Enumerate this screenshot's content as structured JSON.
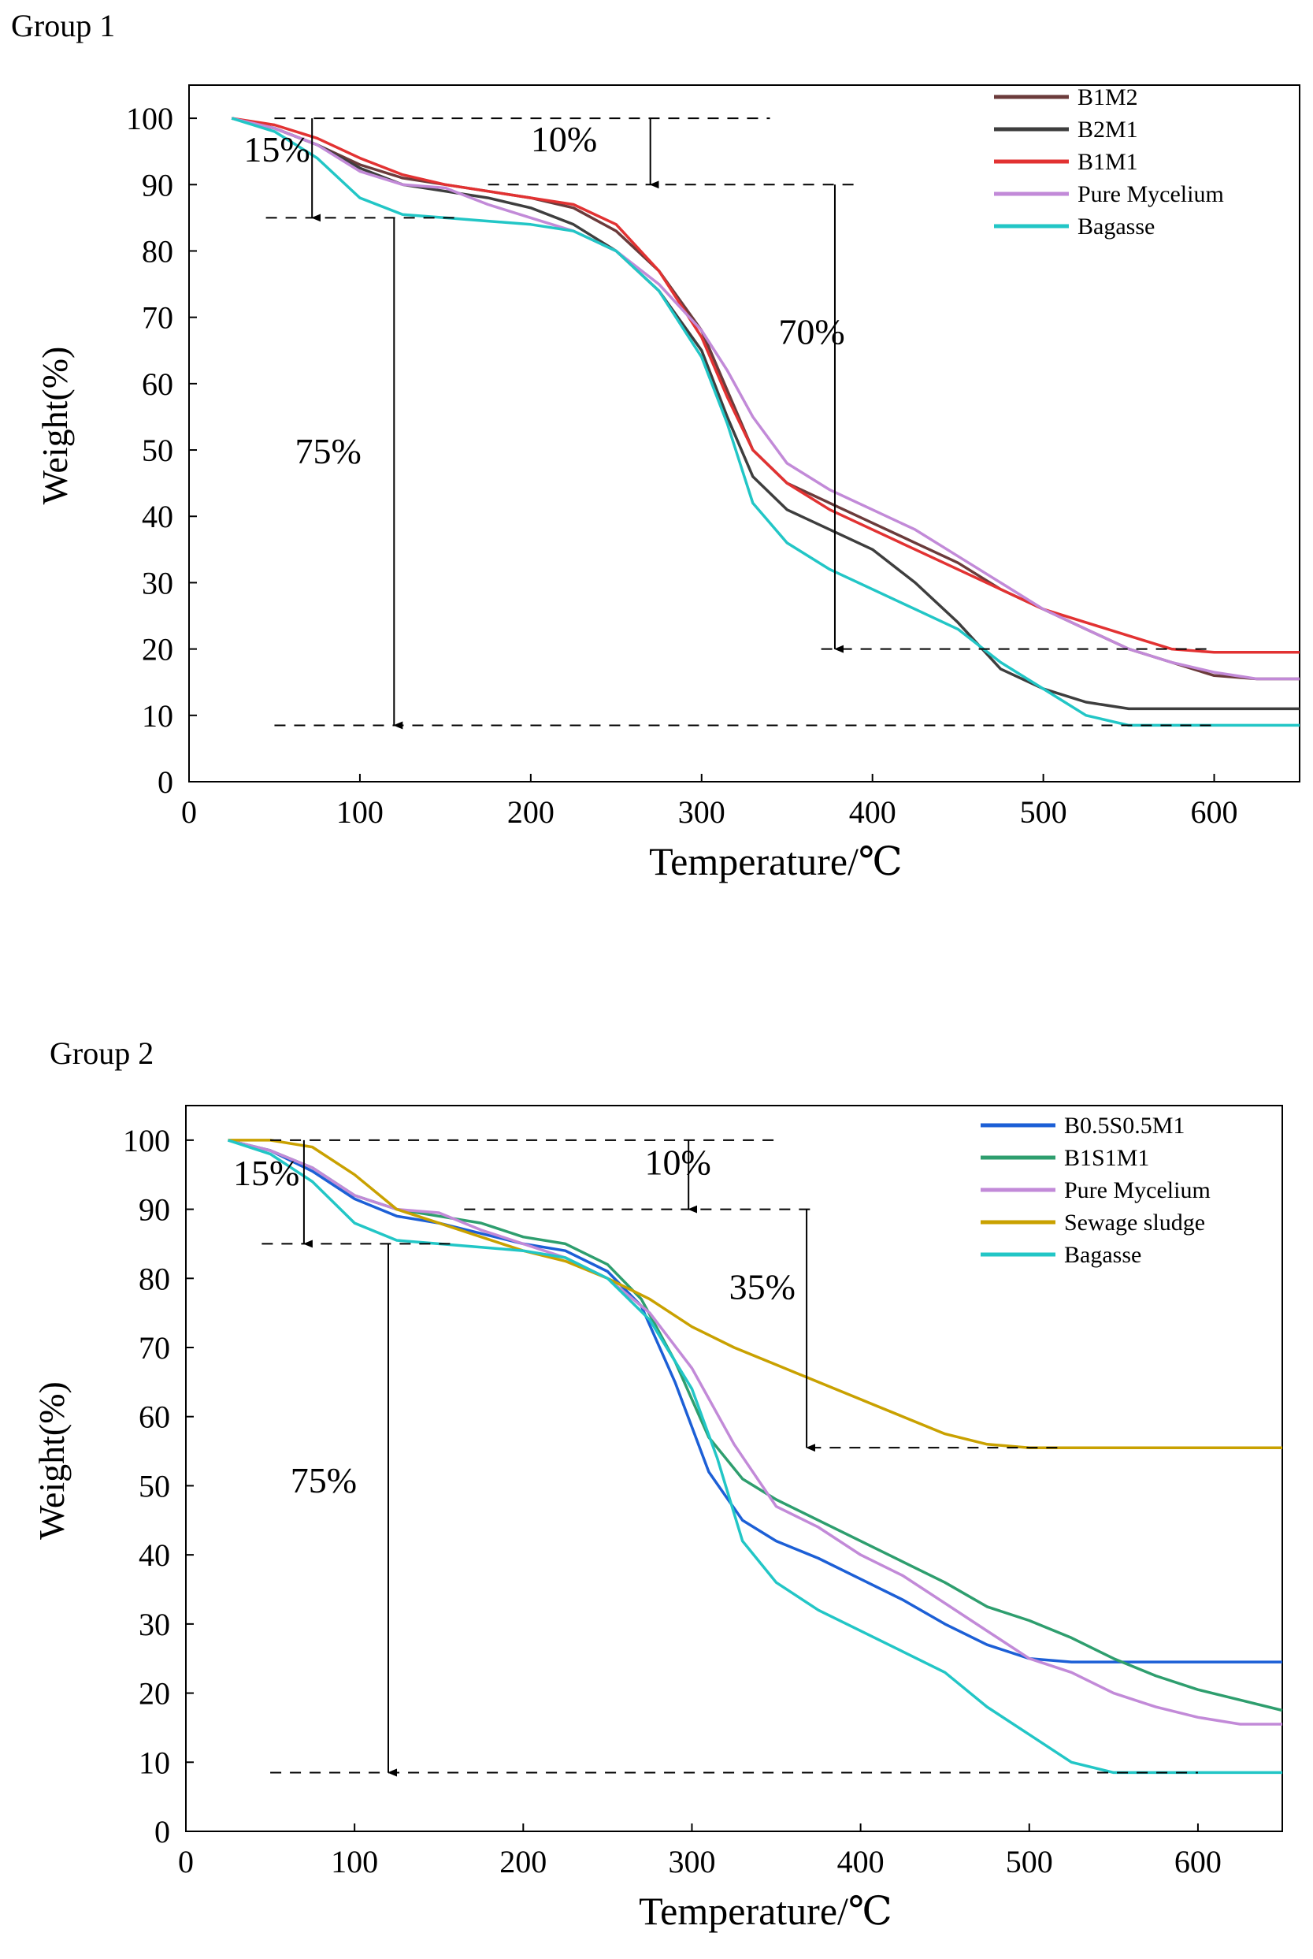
{
  "chart_data": [
    {
      "type": "line",
      "title": "Group 1",
      "xlabel": "Temperature/℃",
      "ylabel": "Weight(%)",
      "xlim": [
        0,
        650
      ],
      "ylim": [
        0,
        105
      ],
      "xticks": [
        "0",
        "100",
        "200",
        "300",
        "400",
        "500",
        "600"
      ],
      "yticks": [
        "0",
        "10",
        "20",
        "30",
        "40",
        "50",
        "60",
        "70",
        "80",
        "90",
        "100"
      ],
      "legend_position": "top-right",
      "series": [
        {
          "name": "B1M2",
          "color": "#6b3b3b",
          "x": [
            25,
            50,
            75,
            100,
            125,
            150,
            175,
            200,
            225,
            250,
            275,
            300,
            315,
            330,
            350,
            375,
            400,
            425,
            450,
            475,
            500,
            525,
            550,
            575,
            600,
            625,
            650
          ],
          "y": [
            100,
            98.5,
            96,
            93,
            91,
            90,
            89,
            88,
            86.5,
            83,
            77,
            68,
            59,
            50,
            45,
            42,
            39,
            36,
            33,
            29,
            26,
            23,
            20,
            18,
            16,
            15.5,
            15.5
          ]
        },
        {
          "name": "B2M1",
          "color": "#3e3e3e",
          "x": [
            25,
            50,
            75,
            100,
            125,
            150,
            175,
            200,
            225,
            250,
            275,
            300,
            315,
            330,
            350,
            375,
            400,
            425,
            450,
            475,
            500,
            525,
            550,
            575,
            600,
            625,
            650
          ],
          "y": [
            100,
            98.5,
            96,
            92.5,
            90,
            89,
            88,
            86.5,
            84,
            80,
            74,
            65,
            55,
            46,
            41,
            38,
            35,
            30,
            24,
            17,
            14,
            12,
            11,
            11,
            11,
            11,
            11
          ]
        },
        {
          "name": "B1M1",
          "color": "#e23232",
          "x": [
            25,
            50,
            75,
            100,
            125,
            150,
            175,
            200,
            225,
            250,
            275,
            300,
            315,
            330,
            350,
            375,
            400,
            425,
            450,
            475,
            500,
            525,
            550,
            575,
            600,
            625,
            650
          ],
          "y": [
            100,
            99,
            97,
            94,
            91.5,
            90,
            89,
            88,
            87,
            84,
            77,
            67,
            58,
            50,
            45,
            41,
            38,
            35,
            32,
            29,
            26,
            24,
            22,
            20,
            19.5,
            19.5,
            19.5
          ]
        },
        {
          "name": "Pure Mycelium",
          "color": "#c28ad8",
          "x": [
            25,
            50,
            75,
            100,
            125,
            150,
            175,
            200,
            225,
            250,
            275,
            300,
            315,
            330,
            350,
            375,
            400,
            425,
            450,
            475,
            500,
            525,
            550,
            575,
            600,
            625,
            650
          ],
          "y": [
            100,
            98.5,
            96,
            92,
            90,
            89.5,
            87,
            85,
            83,
            80,
            75,
            68,
            62,
            55,
            48,
            44,
            41,
            38,
            34,
            30,
            26,
            23,
            20,
            18,
            16.5,
            15.5,
            15.5
          ]
        },
        {
          "name": "Bagasse",
          "color": "#22c6c6",
          "x": [
            25,
            50,
            75,
            100,
            125,
            150,
            175,
            200,
            225,
            250,
            275,
            300,
            315,
            330,
            350,
            375,
            400,
            425,
            450,
            475,
            500,
            525,
            550,
            575,
            600,
            625,
            650
          ],
          "y": [
            100,
            98,
            94,
            88,
            85.5,
            85,
            84.5,
            84,
            83,
            80,
            74,
            64,
            54,
            42,
            36,
            32,
            29,
            26,
            23,
            18,
            14,
            10,
            8.5,
            8.5,
            8.5,
            8.5,
            8.5
          ]
        }
      ],
      "annotations": [
        {
          "text": "15%",
          "x": 32,
          "y": 93.5
        },
        {
          "text": "10%",
          "x": 200,
          "y": 95
        },
        {
          "text": "70%",
          "x": 345,
          "y": 66
        },
        {
          "text": "75%",
          "x": 62,
          "y": 48
        }
      ],
      "guides": {
        "dashed_h": [
          {
            "y": 100,
            "x1": 50,
            "x2": 340
          },
          {
            "y": 90,
            "x1": 175,
            "x2": 390
          },
          {
            "y": 85,
            "x1": 45,
            "x2": 160
          },
          {
            "y": 20,
            "x1": 370,
            "x2": 600
          },
          {
            "y": 8.5,
            "x1": 50,
            "x2": 600
          }
        ],
        "arrows": [
          {
            "x": 72,
            "y1": 100,
            "y2": 85
          },
          {
            "x": 270,
            "y1": 100,
            "y2": 90
          },
          {
            "x": 378,
            "y1": 90,
            "y2": 20
          },
          {
            "x": 120,
            "y1": 85,
            "y2": 8.5
          }
        ]
      }
    },
    {
      "type": "line",
      "title": "Group 2",
      "xlabel": "Temperature/℃",
      "ylabel": "Weight(%)",
      "xlim": [
        0,
        650
      ],
      "ylim": [
        0,
        105
      ],
      "xticks": [
        "0",
        "100",
        "200",
        "300",
        "400",
        "500",
        "600"
      ],
      "yticks": [
        "0",
        "10",
        "20",
        "30",
        "40",
        "50",
        "60",
        "70",
        "80",
        "90",
        "100"
      ],
      "legend_position": "top-right",
      "series": [
        {
          "name": "B0.5S0.5M1",
          "color": "#1c5fd6",
          "x": [
            25,
            50,
            75,
            100,
            125,
            150,
            175,
            200,
            225,
            250,
            270,
            290,
            310,
            330,
            350,
            375,
            400,
            425,
            450,
            475,
            500,
            525,
            550,
            600,
            650
          ],
          "y": [
            100,
            98.5,
            95.5,
            91.5,
            89,
            88,
            86.5,
            85,
            84,
            81,
            76,
            65,
            52,
            45,
            42,
            39.5,
            36.5,
            33.5,
            30,
            27,
            25,
            24.5,
            24.5,
            24.5,
            24.5
          ]
        },
        {
          "name": "B1S1M1",
          "color": "#2e9e6e",
          "x": [
            25,
            50,
            75,
            100,
            125,
            150,
            175,
            200,
            225,
            250,
            270,
            290,
            310,
            330,
            350,
            375,
            400,
            425,
            450,
            475,
            500,
            525,
            550,
            575,
            600,
            625,
            650
          ],
          "y": [
            100,
            98.5,
            96,
            92,
            90,
            89,
            88,
            86,
            85,
            82,
            77,
            68,
            57,
            51,
            48,
            45,
            42,
            39,
            36,
            32.5,
            30.5,
            28,
            25,
            22.5,
            20.5,
            19,
            17.5
          ]
        },
        {
          "name": "Pure Mycelium",
          "color": "#c28ad8",
          "x": [
            25,
            50,
            75,
            100,
            125,
            150,
            175,
            200,
            225,
            250,
            275,
            300,
            325,
            350,
            375,
            400,
            425,
            450,
            475,
            500,
            525,
            550,
            575,
            600,
            625,
            650
          ],
          "y": [
            100,
            98.5,
            96,
            92,
            90,
            89.5,
            87,
            85,
            83,
            80,
            75,
            67,
            56,
            47,
            44,
            40,
            37,
            33,
            29,
            25,
            23,
            20,
            18,
            16.5,
            15.5,
            15.5
          ]
        },
        {
          "name": "Sewage sludge",
          "color": "#c9a100",
          "x": [
            25,
            50,
            75,
            100,
            125,
            150,
            175,
            200,
            225,
            250,
            275,
            300,
            325,
            350,
            375,
            400,
            425,
            450,
            475,
            500,
            525,
            550,
            600,
            650
          ],
          "y": [
            100,
            100,
            99,
            95,
            90,
            88,
            86,
            84,
            82.5,
            80,
            77,
            73,
            70,
            67.5,
            65,
            62.5,
            60,
            57.5,
            56,
            55.5,
            55.5,
            55.5,
            55.5,
            55.5
          ]
        },
        {
          "name": "Bagasse",
          "color": "#22c6c6",
          "x": [
            25,
            50,
            75,
            100,
            125,
            150,
            175,
            200,
            225,
            250,
            275,
            300,
            315,
            330,
            350,
            375,
            400,
            425,
            450,
            475,
            500,
            525,
            550,
            575,
            600,
            625,
            650
          ],
          "y": [
            100,
            98,
            94,
            88,
            85.5,
            85,
            84.5,
            84,
            83,
            80,
            74,
            64,
            54,
            42,
            36,
            32,
            29,
            26,
            23,
            18,
            14,
            10,
            8.5,
            8.5,
            8.5,
            8.5,
            8.5
          ]
        }
      ],
      "annotations": [
        {
          "text": "15%",
          "x": 28,
          "y": 93.5
        },
        {
          "text": "10%",
          "x": 272,
          "y": 95
        },
        {
          "text": "35%",
          "x": 322,
          "y": 77
        },
        {
          "text": "75%",
          "x": 62,
          "y": 49
        }
      ],
      "guides": {
        "dashed_h": [
          {
            "y": 100,
            "x1": 50,
            "x2": 350
          },
          {
            "y": 90,
            "x1": 165,
            "x2": 375
          },
          {
            "y": 85,
            "x1": 45,
            "x2": 160
          },
          {
            "y": 55.5,
            "x1": 370,
            "x2": 520
          },
          {
            "y": 8.5,
            "x1": 50,
            "x2": 600
          }
        ],
        "arrows": [
          {
            "x": 70,
            "y1": 100,
            "y2": 85
          },
          {
            "x": 298,
            "y1": 100,
            "y2": 90
          },
          {
            "x": 368,
            "y1": 90,
            "y2": 55.5
          },
          {
            "x": 120,
            "y1": 85,
            "y2": 8.5
          }
        ]
      }
    }
  ]
}
